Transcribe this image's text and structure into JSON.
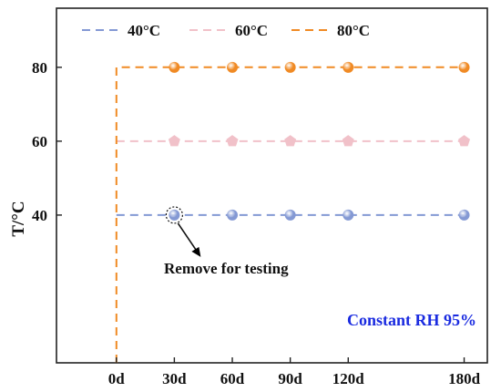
{
  "chart_data": {
    "type": "line",
    "ylabel": "T/°C",
    "x_ticks": [
      {
        "label": "0d",
        "value": 0
      },
      {
        "label": "30d",
        "value": 30
      },
      {
        "label": "60d",
        "value": 60
      },
      {
        "label": "90d",
        "value": 90
      },
      {
        "label": "120d",
        "value": 120
      },
      {
        "label": "180d",
        "value": 180
      }
    ],
    "y_ticks": [
      40,
      60,
      80
    ],
    "xlim": [
      -31,
      192
    ],
    "ylim": [
      0,
      96
    ],
    "grid": false,
    "legend_position": "top",
    "series": [
      {
        "name": "40°C",
        "color": "#8499d4",
        "marker": "circle",
        "x": [
          30,
          60,
          90,
          120,
          180
        ],
        "y": [
          40,
          40,
          40,
          40,
          40
        ],
        "line": [
          [
            0,
            40
          ],
          [
            180,
            40
          ]
        ]
      },
      {
        "name": "60°C",
        "color": "#f1c1c9",
        "marker": "pentagon",
        "x": [
          30,
          60,
          90,
          120,
          180
        ],
        "y": [
          60,
          60,
          60,
          60,
          60
        ],
        "line": [
          [
            0,
            60
          ],
          [
            180,
            60
          ]
        ]
      },
      {
        "name": "80°C",
        "color": "#f08a24",
        "marker": "circle",
        "x": [
          30,
          60,
          90,
          120,
          180
        ],
        "y": [
          80,
          80,
          80,
          80,
          80
        ],
        "line": [
          [
            0,
            0
          ],
          [
            0,
            80
          ],
          [
            180,
            80
          ]
        ]
      }
    ],
    "annotations": [
      {
        "text": "Remove for testing",
        "target": {
          "series": "40°C",
          "x": 30,
          "y": 40
        }
      },
      {
        "text": "Constant RH 95%",
        "color": "#1a2be0"
      }
    ]
  }
}
